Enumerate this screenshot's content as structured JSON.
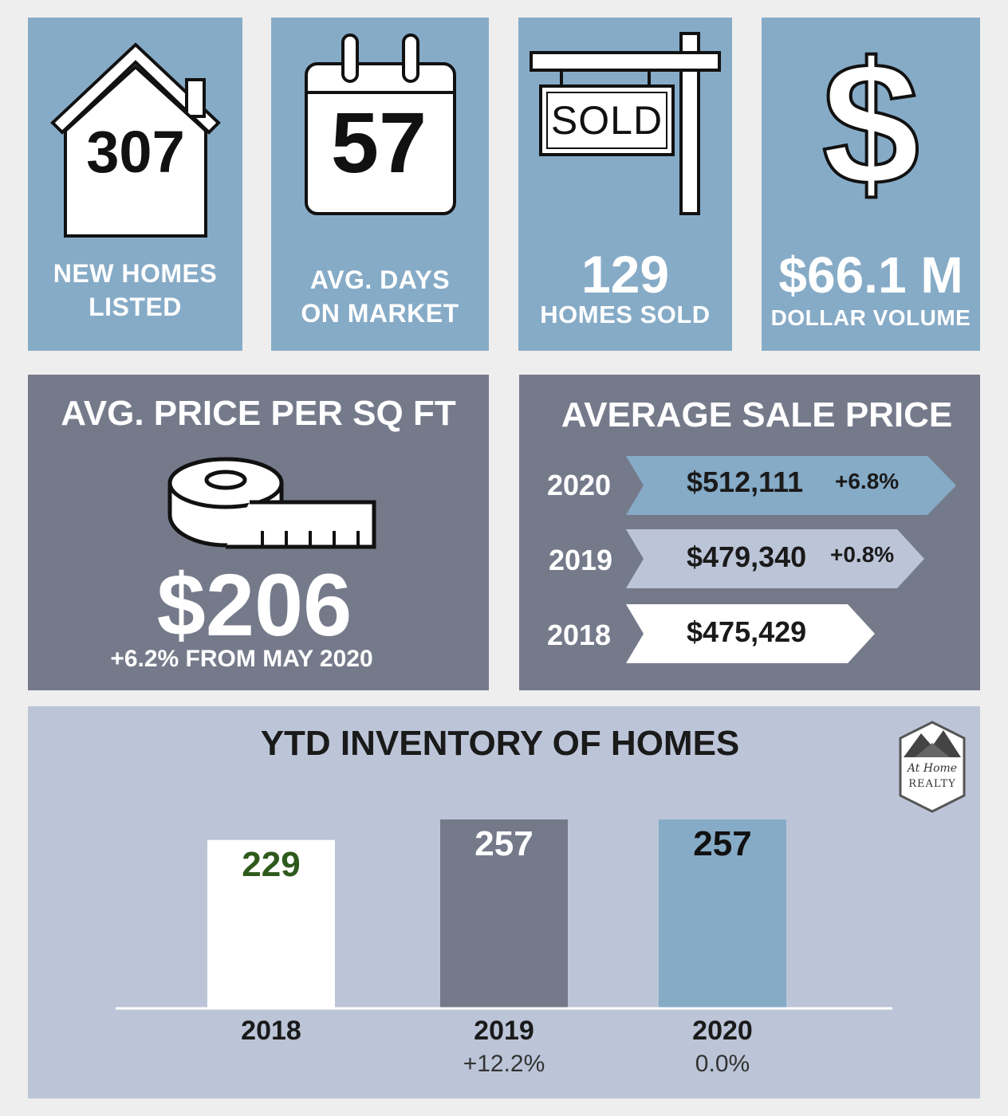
{
  "tiles": {
    "new_homes": {
      "value": "307",
      "label_line1": "NEW HOMES",
      "label_line2": "LISTED"
    },
    "days_on_market": {
      "value": "57",
      "label_line1": "AVG. DAYS",
      "label_line2": "ON MARKET"
    },
    "homes_sold": {
      "sign_text": "SOLD",
      "value": "129",
      "label": "HOMES SOLD"
    },
    "dollar_volume": {
      "value": "$66.1 M",
      "label": "DOLLAR VOLUME"
    }
  },
  "price_per_sqft": {
    "title": "AVG. PRICE PER SQ FT",
    "value": "$206",
    "change": "+6.2% FROM MAY 2020"
  },
  "average_sale_price": {
    "title": "AVERAGE SALE PRICE",
    "rows": [
      {
        "year": "2020",
        "price": "$512,111",
        "change": "+6.8%",
        "color": "#86abc7"
      },
      {
        "year": "2019",
        "price": "$479,340",
        "change": "+0.8%",
        "color": "#bcc5d8"
      },
      {
        "year": "2018",
        "price": "$475,429",
        "change": "",
        "color": "#ffffff"
      }
    ]
  },
  "logo": {
    "line1": "At Home",
    "line2": "REALTY"
  },
  "colors": {
    "blue": "#86abc7",
    "slate": "#757a8b",
    "pale": "#bcc5d8",
    "green_text": "#2e5a1c"
  },
  "chart_data": {
    "type": "bar",
    "title": "YTD INVENTORY OF HOMES",
    "categories": [
      "2018",
      "2019",
      "2020"
    ],
    "values": [
      229,
      257,
      257
    ],
    "value_labels": [
      "229",
      "257",
      "257"
    ],
    "sub_labels": [
      "",
      "+12.2%",
      "0.0%"
    ],
    "bar_colors": [
      "#ffffff",
      "#757a8b",
      "#86abc7"
    ],
    "label_colors": [
      "#2e5a1c",
      "#ffffff",
      "#111111"
    ],
    "ylim": [
      0,
      257
    ],
    "xlabel": "",
    "ylabel": "",
    "grid": false
  }
}
